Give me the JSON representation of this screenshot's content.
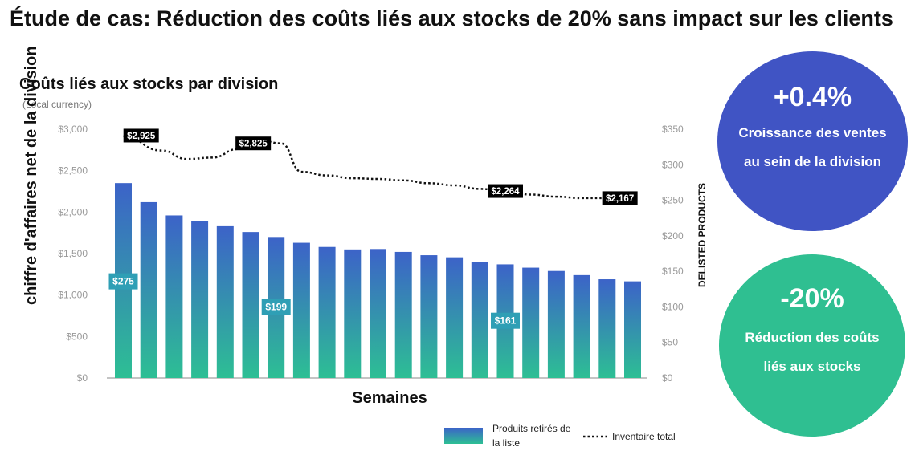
{
  "title": "Étude de cas: Réduction des coûts liés aux stocks de 20% sans impact sur les clients",
  "kpis": [
    {
      "value": "+0.4%",
      "text": "Croissance des ventes au sein de la division",
      "color": "#4054c4"
    },
    {
      "value": "-20%",
      "text": "Réduction des coûts liés aux stocks",
      "color": "#2fbf91"
    }
  ],
  "chart_data": {
    "type": "bar",
    "title": "Coûts liés aux stocks par division",
    "subtitle": "(Local currency)",
    "xlabel": "Semaines",
    "ylabel": "chiffre d'affaires net de la division",
    "y2label": "DELISTED PRODUCTS",
    "y_ticks": [
      "$0",
      "$500",
      "$1,000",
      "$1,500",
      "$2,000",
      "$2,500",
      "$3,000"
    ],
    "y2_ticks": [
      "$0",
      "$50",
      "$100",
      "$150",
      "$200",
      "$250",
      "$300",
      "$350"
    ],
    "ylim": [
      0,
      3000
    ],
    "y2lim": [
      0,
      350
    ],
    "grid": false,
    "legend": "bottom",
    "colors": {
      "bar_top": "#3c63c8",
      "bar_bottom": "#2dbf94",
      "label_bg": "#2f9fb5",
      "line": "#111111",
      "callout_bg": "#000000"
    },
    "series": [
      {
        "name": "Produits retirés de la liste",
        "type": "bar",
        "axis": "left",
        "values": [
          2350,
          2120,
          1960,
          1890,
          1830,
          1760,
          1700,
          1630,
          1580,
          1550,
          1555,
          1520,
          1480,
          1455,
          1400,
          1370,
          1330,
          1290,
          1240,
          1190,
          1165
        ],
        "labels": [
          {
            "index": 0,
            "text": "$275",
            "y": 1165
          },
          {
            "index": 6,
            "text": "$199",
            "y": 855
          },
          {
            "index": 15,
            "text": "$161",
            "y": 690
          }
        ]
      },
      {
        "name": "Inventaire total",
        "type": "line",
        "axis": "right",
        "style": "dotted",
        "x": [
          0,
          1.5,
          2.5,
          3.5,
          4.5,
          5.5,
          6.2,
          7,
          8,
          9,
          10,
          11,
          12,
          13,
          14,
          15,
          16,
          17,
          18,
          19,
          20
        ],
        "values": [
          340,
          320,
          308,
          310,
          322,
          333,
          330,
          290,
          285,
          281,
          280,
          278,
          274,
          271,
          266,
          263,
          258,
          255,
          253,
          253,
          258
        ],
        "labels": [
          {
            "x": 0.7,
            "text": "$2,925",
            "y2": 341
          },
          {
            "x": 5.1,
            "text": "$2,825",
            "y2": 330
          },
          {
            "x": 15,
            "text": "$2,264",
            "y2": 263
          },
          {
            "x": 19.5,
            "text": "$2,167",
            "y2": 253
          }
        ]
      }
    ]
  }
}
